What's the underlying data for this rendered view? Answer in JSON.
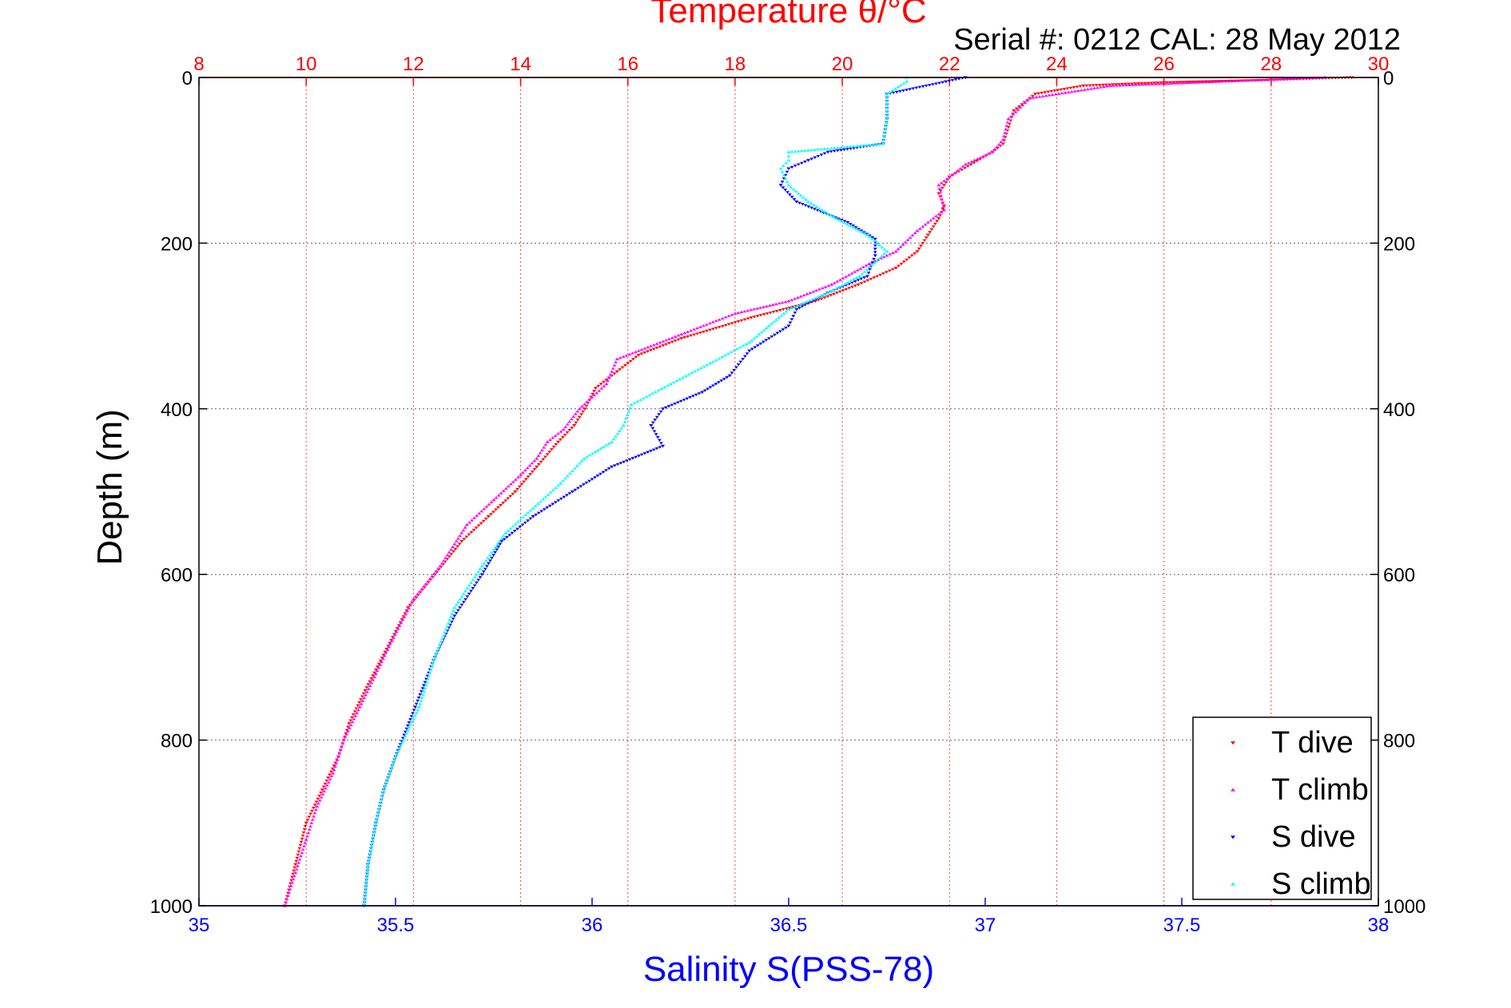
{
  "chart_data": {
    "type": "scatter",
    "title": "Temperature θ/°C",
    "subtitle": "Serial #: 0212  CAL: 28 May 2012",
    "ylabel": "Depth (m)",
    "xlabel_bottom": "Salinity S(PSS-78)",
    "ylim": [
      1000,
      0
    ],
    "y_ticks": [
      "0",
      "200",
      "400",
      "600",
      "800",
      "1000"
    ],
    "temperature_axis": {
      "range": [
        8,
        30
      ],
      "ticks": [
        "8",
        "10",
        "12",
        "14",
        "16",
        "18",
        "20",
        "22",
        "24",
        "26",
        "28",
        "30"
      ],
      "position": "top",
      "color": "#ff0000"
    },
    "salinity_axis": {
      "range": [
        35,
        38
      ],
      "ticks": [
        "35",
        "35.5",
        "36",
        "36.5",
        "37",
        "37.5",
        "38"
      ],
      "position": "bottom",
      "color": "#0000ff"
    },
    "grid": true,
    "legend_position": "bottom-right",
    "series": [
      {
        "name": "T dive",
        "axis": "temperature",
        "color": "#ff0000",
        "marker": "triangle-down",
        "points": [
          [
            29.5,
            0
          ],
          [
            28,
            3
          ],
          [
            26,
            6
          ],
          [
            24.5,
            10
          ],
          [
            23.6,
            20
          ],
          [
            23.2,
            40
          ],
          [
            23.1,
            60
          ],
          [
            23,
            80
          ],
          [
            22.8,
            90
          ],
          [
            22.4,
            105
          ],
          [
            22,
            120
          ],
          [
            21.8,
            140
          ],
          [
            21.9,
            155
          ],
          [
            21.8,
            170
          ],
          [
            21.6,
            190
          ],
          [
            21.4,
            210
          ],
          [
            21,
            230
          ],
          [
            20.3,
            250
          ],
          [
            19.5,
            270
          ],
          [
            18.3,
            290
          ],
          [
            17,
            315
          ],
          [
            16.2,
            335
          ],
          [
            15.8,
            355
          ],
          [
            15.4,
            375
          ],
          [
            15.2,
            400
          ],
          [
            15,
            420
          ],
          [
            14.7,
            440
          ],
          [
            14.3,
            470
          ],
          [
            13.9,
            500
          ],
          [
            13.4,
            530
          ],
          [
            12.9,
            560
          ],
          [
            12.4,
            600
          ],
          [
            11.9,
            640
          ],
          [
            11.5,
            690
          ],
          [
            11.1,
            740
          ],
          [
            10.8,
            780
          ],
          [
            10.6,
            820
          ],
          [
            10.3,
            860
          ],
          [
            10,
            900
          ],
          [
            9.8,
            950
          ],
          [
            9.6,
            1000
          ]
        ]
      },
      {
        "name": "T climb",
        "axis": "temperature",
        "color": "#ff00ff",
        "marker": "triangle-up",
        "points": [
          [
            29,
            0
          ],
          [
            27,
            5
          ],
          [
            25,
            10
          ],
          [
            23.5,
            25
          ],
          [
            23.1,
            50
          ],
          [
            23,
            75
          ],
          [
            22.8,
            90
          ],
          [
            22.3,
            105
          ],
          [
            21.8,
            130
          ],
          [
            21.9,
            160
          ],
          [
            21.4,
            185
          ],
          [
            21,
            210
          ],
          [
            20.5,
            225
          ],
          [
            19.8,
            250
          ],
          [
            19,
            270
          ],
          [
            18,
            285
          ],
          [
            17,
            310
          ],
          [
            15.8,
            340
          ],
          [
            15.6,
            370
          ],
          [
            15.1,
            400
          ],
          [
            14.8,
            425
          ],
          [
            14.5,
            440
          ],
          [
            14.3,
            460
          ],
          [
            14,
            480
          ],
          [
            13.5,
            510
          ],
          [
            13,
            540
          ],
          [
            12.5,
            590
          ],
          [
            12,
            630
          ],
          [
            11.6,
            680
          ],
          [
            11.3,
            720
          ],
          [
            11,
            760
          ],
          [
            10.7,
            800
          ],
          [
            10.5,
            840
          ],
          [
            10.2,
            880
          ],
          [
            10,
            920
          ],
          [
            9.8,
            960
          ],
          [
            9.6,
            1000
          ]
        ]
      },
      {
        "name": "S dive",
        "axis": "salinity",
        "color": "#0000ff",
        "marker": "triangle-down",
        "points": [
          [
            36.95,
            0
          ],
          [
            36.9,
            5
          ],
          [
            36.75,
            20
          ],
          [
            36.75,
            50
          ],
          [
            36.74,
            80
          ],
          [
            36.6,
            90
          ],
          [
            36.55,
            100
          ],
          [
            36.5,
            110
          ],
          [
            36.48,
            130
          ],
          [
            36.52,
            150
          ],
          [
            36.65,
            175
          ],
          [
            36.72,
            195
          ],
          [
            36.72,
            215
          ],
          [
            36.7,
            240
          ],
          [
            36.6,
            260
          ],
          [
            36.52,
            280
          ],
          [
            36.5,
            300
          ],
          [
            36.4,
            330
          ],
          [
            36.35,
            360
          ],
          [
            36.28,
            380
          ],
          [
            36.18,
            400
          ],
          [
            36.15,
            420
          ],
          [
            36.18,
            445
          ],
          [
            36.05,
            470
          ],
          [
            35.95,
            500
          ],
          [
            35.85,
            530
          ],
          [
            35.77,
            560
          ],
          [
            35.72,
            600
          ],
          [
            35.65,
            650
          ],
          [
            35.6,
            700
          ],
          [
            35.55,
            760
          ],
          [
            35.5,
            820
          ],
          [
            35.47,
            860
          ],
          [
            35.45,
            900
          ],
          [
            35.43,
            950
          ],
          [
            35.42,
            1000
          ]
        ]
      },
      {
        "name": "S climb",
        "axis": "salinity",
        "color": "#00ffff",
        "marker": "triangle-up",
        "points": [
          [
            36.8,
            0
          ],
          [
            36.8,
            5
          ],
          [
            36.75,
            20
          ],
          [
            36.75,
            50
          ],
          [
            36.74,
            80
          ],
          [
            36.5,
            90
          ],
          [
            36.5,
            100
          ],
          [
            36.48,
            110
          ],
          [
            36.5,
            130
          ],
          [
            36.55,
            150
          ],
          [
            36.62,
            170
          ],
          [
            36.7,
            190
          ],
          [
            36.75,
            210
          ],
          [
            36.68,
            240
          ],
          [
            36.6,
            260
          ],
          [
            36.5,
            280
          ],
          [
            36.45,
            300
          ],
          [
            36.4,
            320
          ],
          [
            36.3,
            345
          ],
          [
            36.2,
            370
          ],
          [
            36.1,
            395
          ],
          [
            36.08,
            420
          ],
          [
            36.05,
            440
          ],
          [
            35.98,
            460
          ],
          [
            35.92,
            490
          ],
          [
            35.85,
            520
          ],
          [
            35.78,
            550
          ],
          [
            35.72,
            590
          ],
          [
            35.65,
            640
          ],
          [
            35.6,
            700
          ],
          [
            35.56,
            760
          ],
          [
            35.5,
            820
          ],
          [
            35.47,
            860
          ],
          [
            35.45,
            900
          ],
          [
            35.43,
            950
          ],
          [
            35.42,
            1000
          ]
        ]
      }
    ]
  }
}
